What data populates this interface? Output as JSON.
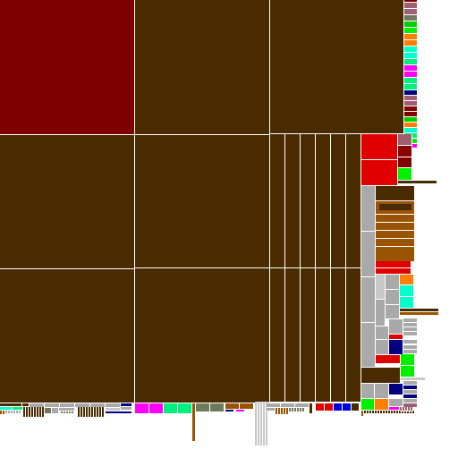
{
  "palette": {
    "background": "#ffffff",
    "cell_border": "#ffffff",
    "dark_brown": "#4a2b00",
    "maroon": "#7f0000",
    "red": "#e00000",
    "dark_red": "#8b0000",
    "gray": "#a9a9a9",
    "light_gray": "#c8c8c8",
    "medium_brown": "#9a5300",
    "navy": "#000080",
    "blue": "#0000e0",
    "green": "#00d000",
    "lime": "#00f000",
    "cyan": "#00ffcc",
    "magenta": "#ff00ff",
    "orange": "#ff7f00",
    "olive_gray": "#6e7a5e",
    "mauve": "#9e6070",
    "spring_green": "#00f080"
  }
}
